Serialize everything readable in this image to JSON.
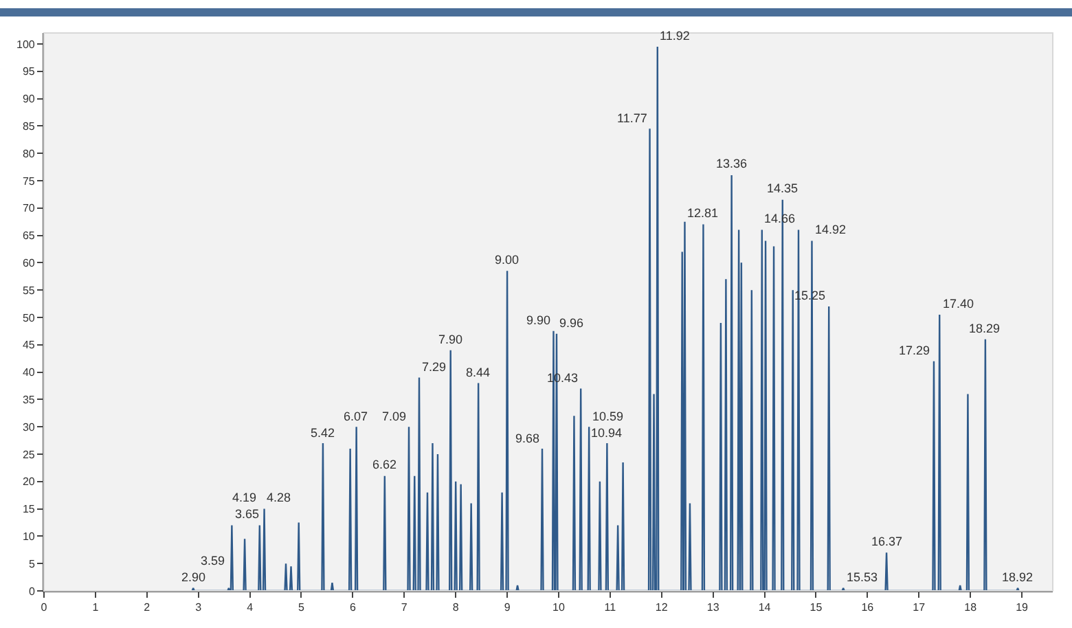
{
  "chart_data": {
    "type": "line",
    "color": "#2f5a8a",
    "marker": "none",
    "line_style": "solid",
    "grid": false,
    "legend": false,
    "x": [
      2.88,
      2.9,
      2.92,
      3.57,
      3.59,
      3.61,
      3.63,
      3.65,
      3.67,
      3.88,
      3.9,
      3.92,
      4.17,
      4.19,
      4.21,
      4.26,
      4.28,
      4.3,
      4.68,
      4.7,
      4.72,
      4.78,
      4.8,
      4.82,
      4.93,
      4.95,
      4.97,
      5.4,
      5.42,
      5.44,
      5.58,
      5.6,
      5.62,
      5.93,
      5.95,
      5.97,
      6.05,
      6.07,
      6.09,
      6.6,
      6.62,
      6.64,
      7.07,
      7.09,
      7.11,
      7.18,
      7.2,
      7.22,
      7.27,
      7.29,
      7.31,
      7.43,
      7.45,
      7.47,
      7.53,
      7.55,
      7.57,
      7.63,
      7.65,
      7.67,
      7.88,
      7.9,
      7.92,
      7.98,
      8.0,
      8.02,
      8.08,
      8.1,
      8.12,
      8.28,
      8.3,
      8.32,
      8.42,
      8.44,
      8.46,
      8.88,
      8.9,
      8.92,
      8.98,
      9.0,
      9.02,
      9.18,
      9.2,
      9.22,
      9.66,
      9.68,
      9.7,
      9.88,
      9.9,
      9.92,
      9.94,
      9.96,
      9.98,
      10.28,
      10.3,
      10.32,
      10.41,
      10.43,
      10.45,
      10.57,
      10.59,
      10.61,
      10.78,
      10.8,
      10.82,
      10.92,
      10.94,
      10.96,
      11.13,
      11.15,
      11.17,
      11.23,
      11.25,
      11.27,
      11.75,
      11.77,
      11.79,
      11.83,
      11.85,
      11.87,
      11.9,
      11.92,
      11.94,
      12.38,
      12.4,
      12.42,
      12.43,
      12.45,
      12.47,
      12.53,
      12.55,
      12.57,
      12.79,
      12.81,
      12.83,
      13.13,
      13.15,
      13.17,
      13.23,
      13.25,
      13.27,
      13.34,
      13.36,
      13.38,
      13.48,
      13.5,
      13.52,
      13.53,
      13.55,
      13.57,
      13.73,
      13.75,
      13.77,
      13.93,
      13.95,
      13.97,
      14.0,
      14.02,
      14.04,
      14.16,
      14.18,
      14.2,
      14.33,
      14.35,
      14.37,
      14.53,
      14.55,
      14.57,
      14.64,
      14.66,
      14.68,
      14.9,
      14.92,
      14.94,
      15.23,
      15.25,
      15.27,
      15.51,
      15.53,
      15.55,
      16.35,
      16.37,
      16.39,
      17.27,
      17.29,
      17.31,
      17.38,
      17.4,
      17.42,
      17.78,
      17.8,
      17.82,
      17.93,
      17.95,
      17.97,
      18.27,
      18.29,
      18.31,
      18.9,
      18.92,
      18.94
    ],
    "values": [
      0,
      0.5,
      0,
      0,
      0.5,
      0,
      0,
      12,
      0,
      0,
      9.5,
      0,
      0,
      12,
      0,
      0,
      15,
      0,
      0,
      5,
      0,
      0,
      4.5,
      0,
      0,
      12.5,
      0,
      0,
      27,
      0,
      0,
      1.5,
      0,
      0,
      26,
      0,
      0,
      30,
      0,
      0,
      21,
      0,
      0,
      30,
      0,
      0,
      21,
      0,
      0,
      39,
      0,
      0,
      18,
      0,
      0,
      27,
      0,
      0,
      25,
      0,
      0,
      44,
      0,
      0,
      20,
      0,
      0,
      19.5,
      0,
      0,
      16,
      0,
      0,
      38,
      0,
      0,
      18,
      0,
      0,
      58.5,
      0,
      0,
      1,
      0,
      0,
      26,
      0,
      0,
      47.5,
      0,
      0,
      47,
      0,
      0,
      32,
      0,
      0,
      37,
      0,
      0,
      30,
      0,
      0,
      20,
      0,
      0,
      27,
      0,
      0,
      12,
      0,
      0,
      23.5,
      0,
      0,
      84.5,
      0,
      0,
      36,
      0,
      0,
      99.5,
      0,
      0,
      62,
      0,
      0,
      67.5,
      0,
      0,
      16,
      0,
      0,
      67,
      0,
      0,
      49,
      0,
      0,
      57,
      0,
      0,
      76,
      0,
      0,
      66,
      0,
      0,
      60,
      0,
      0,
      55,
      0,
      0,
      66,
      0,
      0,
      64,
      0,
      0,
      63,
      0,
      0,
      71.5,
      0,
      0,
      55,
      0,
      0,
      66,
      0,
      0,
      64,
      0,
      0,
      52,
      0,
      0,
      0.5,
      0,
      0,
      7,
      0,
      0,
      42,
      0,
      0,
      50.5,
      0,
      0,
      1,
      0,
      0,
      36,
      0,
      0,
      46,
      0,
      0,
      0.5,
      0
    ],
    "xlim": [
      0,
      19.6
    ],
    "xticks": [
      0,
      1,
      2,
      3,
      4,
      5,
      6,
      7,
      8,
      9,
      10,
      11,
      12,
      13,
      14,
      15,
      16,
      17,
      18,
      19
    ],
    "ylim": [
      0,
      102
    ],
    "yticks": [
      0,
      5,
      10,
      15,
      20,
      25,
      30,
      35,
      40,
      45,
      50,
      55,
      60,
      65,
      70,
      75,
      80,
      85,
      90,
      95,
      100
    ],
    "annotations": [
      {
        "text": "2.90",
        "x": 2.9,
        "y": 0.5
      },
      {
        "text": "3.59",
        "x": 3.59,
        "y": 0.5
      },
      {
        "text": "3.65",
        "x": 3.65,
        "y": 12
      },
      {
        "text": "4.19",
        "x": 4.19,
        "y": 12
      },
      {
        "text": "4.28",
        "x": 4.28,
        "y": 15
      },
      {
        "text": "5.42",
        "x": 5.42,
        "y": 27
      },
      {
        "text": "6.07",
        "x": 6.07,
        "y": 30
      },
      {
        "text": "6.62",
        "x": 6.62,
        "y": 21
      },
      {
        "text": "7.09",
        "x": 7.09,
        "y": 30
      },
      {
        "text": "7.29",
        "x": 7.29,
        "y": 39
      },
      {
        "text": "7.90",
        "x": 7.9,
        "y": 44
      },
      {
        "text": "8.44",
        "x": 8.44,
        "y": 38
      },
      {
        "text": "9.00",
        "x": 9.0,
        "y": 58.5
      },
      {
        "text": "9.68",
        "x": 9.68,
        "y": 26
      },
      {
        "text": "9.90",
        "x": 9.9,
        "y": 47.5
      },
      {
        "text": "9.96",
        "x": 9.96,
        "y": 47
      },
      {
        "text": "10.43",
        "x": 10.43,
        "y": 37
      },
      {
        "text": "10.59",
        "x": 10.59,
        "y": 30
      },
      {
        "text": "10.94",
        "x": 10.94,
        "y": 27
      },
      {
        "text": "11.77",
        "x": 11.77,
        "y": 84.5
      },
      {
        "text": "11.92",
        "x": 11.92,
        "y": 99.5
      },
      {
        "text": "12.81",
        "x": 12.81,
        "y": 67
      },
      {
        "text": "13.36",
        "x": 13.36,
        "y": 76
      },
      {
        "text": "14.35",
        "x": 14.35,
        "y": 71.5
      },
      {
        "text": "14.66",
        "x": 14.66,
        "y": 66
      },
      {
        "text": "14.92",
        "x": 14.92,
        "y": 64
      },
      {
        "text": "15.25",
        "x": 15.25,
        "y": 52
      },
      {
        "text": "15.53",
        "x": 15.53,
        "y": 0.5
      },
      {
        "text": "16.37",
        "x": 16.37,
        "y": 7
      },
      {
        "text": "17.29",
        "x": 17.29,
        "y": 42
      },
      {
        "text": "17.40",
        "x": 17.4,
        "y": 50.5
      },
      {
        "text": "18.29",
        "x": 18.29,
        "y": 46
      },
      {
        "text": "18.92",
        "x": 18.92,
        "y": 0.5
      }
    ]
  }
}
